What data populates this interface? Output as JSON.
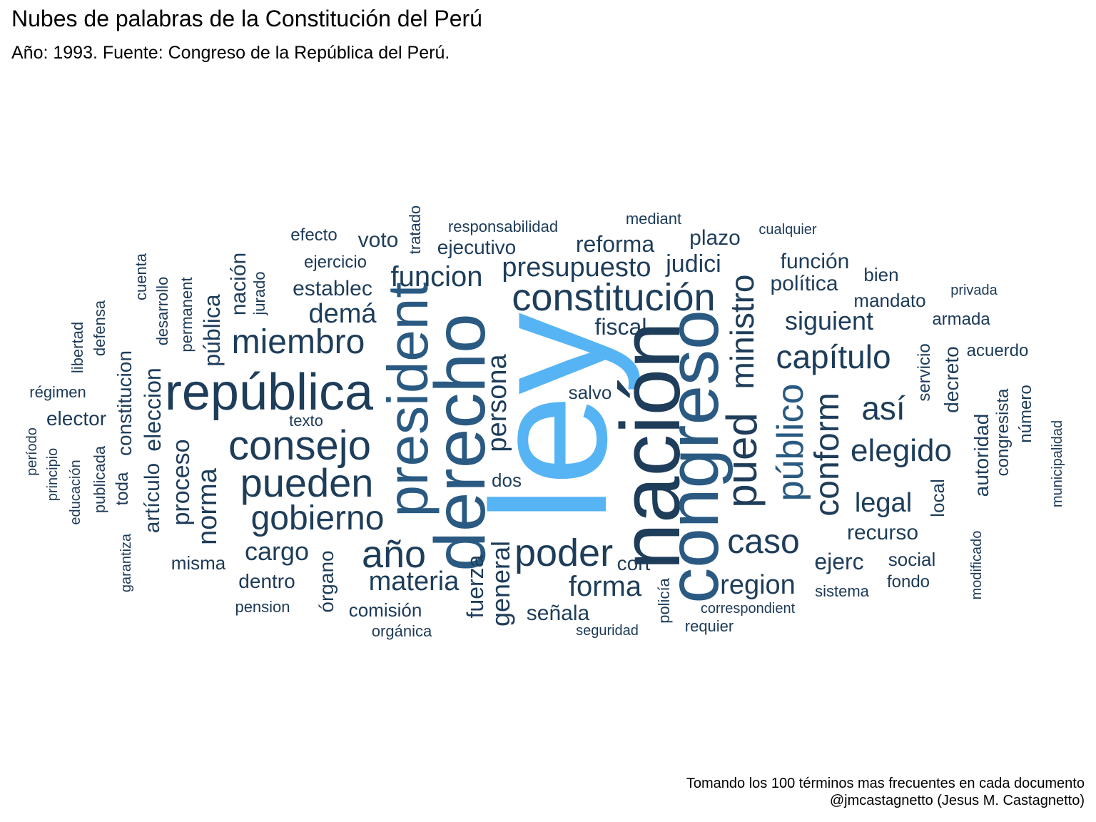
{
  "title": "Nubes de palabras de la Constitución del Perú",
  "subtitle": "Año: 1993. Fuente: Congreso de la República del Perú.",
  "caption": [
    "Tomando los 100 términos mas frecuentes en cada documento",
    "@jmcastagnetto (Jesus M. Castagnetto)"
  ],
  "colors": {
    "highlight": "#56B4F4",
    "dark": "#1E3D5A",
    "mid": "#2A5A82",
    "light": "#1C3A57"
  },
  "words": [
    {
      "text": "ley",
      "rotated": true,
      "highlight": true
    },
    {
      "text": "nación",
      "rotated": true
    },
    {
      "text": "congreso",
      "rotated": true
    },
    {
      "text": "derecho",
      "rotated": true
    },
    {
      "text": "president",
      "rotated": true
    },
    {
      "text": "república",
      "rotated": false
    },
    {
      "text": "constitución",
      "rotated": false
    },
    {
      "text": "consejo",
      "rotated": false
    },
    {
      "text": "pued",
      "rotated": true
    },
    {
      "text": "ministro",
      "rotated": true
    },
    {
      "text": "público",
      "rotated": true
    },
    {
      "text": "pueden",
      "rotated": false
    },
    {
      "text": "año",
      "rotated": false
    },
    {
      "text": "poder",
      "rotated": false
    },
    {
      "text": "conform",
      "rotated": true
    },
    {
      "text": "miembro",
      "rotated": false
    },
    {
      "text": "gobierno",
      "rotated": false
    },
    {
      "text": "capítulo",
      "rotated": false
    },
    {
      "text": "caso",
      "rotated": false
    },
    {
      "text": "elegido",
      "rotated": false
    },
    {
      "text": "así",
      "rotated": false
    },
    {
      "text": "funcion",
      "rotated": false
    },
    {
      "text": "forma",
      "rotated": false
    },
    {
      "text": "presupuesto",
      "rotated": false
    },
    {
      "text": "demá",
      "rotated": false
    },
    {
      "text": "materia",
      "rotated": false
    },
    {
      "text": "region",
      "rotated": false
    },
    {
      "text": "persona",
      "rotated": true
    },
    {
      "text": "siguient",
      "rotated": false
    },
    {
      "text": "legal",
      "rotated": false
    },
    {
      "text": "norma",
      "rotated": true
    },
    {
      "text": "proceso",
      "rotated": true
    },
    {
      "text": "general",
      "rotated": true
    },
    {
      "text": "cargo",
      "rotated": false
    },
    {
      "text": "fuerza",
      "rotated": true
    },
    {
      "text": "judici",
      "rotated": false
    },
    {
      "text": "reforma",
      "rotated": false
    },
    {
      "text": "establec",
      "rotated": false
    },
    {
      "text": "fiscal",
      "rotated": false
    },
    {
      "text": "eleccion",
      "rotated": true
    },
    {
      "text": "artículo",
      "rotated": true
    },
    {
      "text": "constitucion",
      "rotated": true
    },
    {
      "text": "pública",
      "rotated": true
    },
    {
      "text": "nación",
      "rotated": true
    },
    {
      "text": "voto",
      "rotated": false
    },
    {
      "text": "ejecutivo",
      "rotated": false
    },
    {
      "text": "plazo",
      "rotated": false
    },
    {
      "text": "política",
      "rotated": false
    },
    {
      "text": "función",
      "rotated": false
    },
    {
      "text": "ejerc",
      "rotated": false
    },
    {
      "text": "recurso",
      "rotated": false
    },
    {
      "text": "señala",
      "rotated": false
    },
    {
      "text": "cort",
      "rotated": false
    },
    {
      "text": "órgano",
      "rotated": true
    },
    {
      "text": "decreto",
      "rotated": true
    },
    {
      "text": "autoridad",
      "rotated": true
    },
    {
      "text": "local",
      "rotated": true
    },
    {
      "text": "salvo",
      "rotated": false
    },
    {
      "text": "dos",
      "rotated": false
    },
    {
      "text": "elector",
      "rotated": false
    },
    {
      "text": "toda",
      "rotated": true
    },
    {
      "text": "dentro",
      "rotated": false
    },
    {
      "text": "comisión",
      "rotated": false
    },
    {
      "text": "misma",
      "rotated": false
    },
    {
      "text": "mandato",
      "rotated": false
    },
    {
      "text": "bien",
      "rotated": false
    },
    {
      "text": "social",
      "rotated": false
    },
    {
      "text": "fondo",
      "rotated": false
    },
    {
      "text": "armada",
      "rotated": false
    },
    {
      "text": "acuerdo",
      "rotated": false
    },
    {
      "text": "servicio",
      "rotated": true
    },
    {
      "text": "congresista",
      "rotated": true
    },
    {
      "text": "número",
      "rotated": true
    },
    {
      "text": "sistema",
      "rotated": false
    },
    {
      "text": "efecto",
      "rotated": false
    },
    {
      "text": "ejercicio",
      "rotated": false
    },
    {
      "text": "mediant",
      "rotated": false
    },
    {
      "text": "texto",
      "rotated": false
    },
    {
      "text": "pension",
      "rotated": false
    },
    {
      "text": "orgánica",
      "rotated": false
    },
    {
      "text": "policía",
      "rotated": true
    },
    {
      "text": "requier",
      "rotated": false
    },
    {
      "text": "jurado",
      "rotated": true
    },
    {
      "text": "permanent",
      "rotated": true
    },
    {
      "text": "cuenta",
      "rotated": true
    },
    {
      "text": "defensa",
      "rotated": true
    },
    {
      "text": "libertad",
      "rotated": true
    },
    {
      "text": "publicada",
      "rotated": true
    },
    {
      "text": "desarrollo",
      "rotated": true
    },
    {
      "text": "tratado",
      "rotated": true
    },
    {
      "text": "responsabilidad",
      "rotated": false
    },
    {
      "text": "cualquier",
      "rotated": false
    },
    {
      "text": "privada",
      "rotated": false
    },
    {
      "text": "correspondient",
      "rotated": false
    },
    {
      "text": "seguridad",
      "rotated": false
    },
    {
      "text": "régimen",
      "rotated": false
    },
    {
      "text": "período",
      "rotated": true
    },
    {
      "text": "principio",
      "rotated": true
    },
    {
      "text": "educación",
      "rotated": true
    },
    {
      "text": "garantiza",
      "rotated": true
    },
    {
      "text": "modificado",
      "rotated": true
    },
    {
      "text": "municipalidad",
      "rotated": true
    }
  ]
}
